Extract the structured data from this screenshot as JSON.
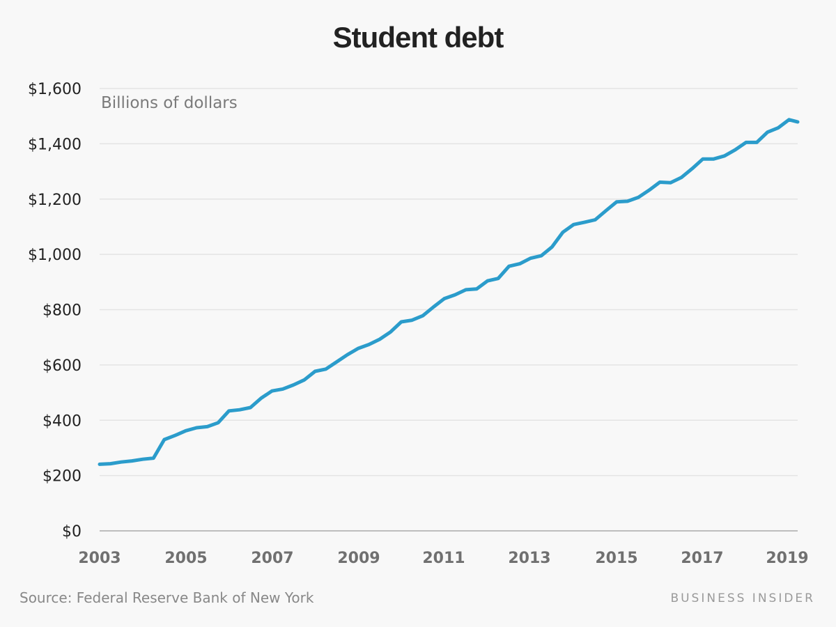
{
  "header": {
    "title": "Student debt"
  },
  "footer": {
    "source": "Source: Federal Reserve Bank of New York",
    "brand": "BUSINESS INSIDER"
  },
  "colors": {
    "line": "#2b9ccb",
    "grid": "#e4e4e4",
    "axis": "#bdbdbd",
    "background": "#f8f8f8"
  },
  "chart_data": {
    "type": "line",
    "title": "Student debt",
    "subtitle": "Billions of dollars",
    "xlabel": "",
    "ylabel": "Billions of dollars",
    "ylim": [
      0,
      1600
    ],
    "xlim": [
      2003,
      2019.2
    ],
    "grid": true,
    "legend": "none",
    "y_ticks": [
      0,
      200,
      400,
      600,
      800,
      1000,
      1200,
      1400,
      1600
    ],
    "y_tick_labels": [
      "$0",
      "$200",
      "$400",
      "$600",
      "$800",
      "$1,000",
      "$1,200",
      "$1,400",
      "$1,600"
    ],
    "x_ticks": [
      2003,
      2005,
      2007,
      2009,
      2011,
      2013,
      2015,
      2017,
      2019
    ],
    "x_tick_labels": [
      "2003",
      "2005",
      "2007",
      "2009",
      "2011",
      "2013",
      "2015",
      "2017",
      "2019"
    ],
    "source": "Federal Reserve Bank of New York",
    "series": [
      {
        "name": "Student debt",
        "x": [
          2003.0,
          2003.25,
          2003.5,
          2003.75,
          2004.0,
          2004.25,
          2004.5,
          2004.75,
          2005.0,
          2005.25,
          2005.5,
          2005.75,
          2006.0,
          2006.25,
          2006.5,
          2006.75,
          2007.0,
          2007.25,
          2007.5,
          2007.75,
          2008.0,
          2008.25,
          2008.5,
          2008.75,
          2009.0,
          2009.25,
          2009.5,
          2009.75,
          2010.0,
          2010.25,
          2010.5,
          2010.75,
          2011.0,
          2011.25,
          2011.5,
          2011.75,
          2012.0,
          2012.25,
          2012.5,
          2012.75,
          2013.0,
          2013.25,
          2013.5,
          2013.75,
          2014.0,
          2014.25,
          2014.5,
          2014.75,
          2015.0,
          2015.25,
          2015.5,
          2015.75,
          2016.0,
          2016.25,
          2016.5,
          2016.75,
          2017.0,
          2017.25,
          2017.5,
          2017.75,
          2018.0,
          2018.25,
          2018.5,
          2018.75,
          2019.0,
          2019.2
        ],
        "values": [
          241,
          243,
          249,
          253,
          259,
          263,
          330,
          345,
          362,
          373,
          377,
          391,
          434,
          438,
          446,
          480,
          506,
          513,
          528,
          546,
          577,
          585,
          611,
          637,
          660,
          674,
          693,
          719,
          756,
          762,
          778,
          810,
          840,
          854,
          872,
          875,
          904,
          913,
          957,
          966,
          986,
          995,
          1027,
          1080,
          1108,
          1116,
          1125,
          1158,
          1190,
          1192,
          1206,
          1232,
          1261,
          1259,
          1278,
          1310,
          1345,
          1345,
          1356,
          1378,
          1405,
          1405,
          1442,
          1458,
          1487,
          1479
        ]
      }
    ]
  }
}
